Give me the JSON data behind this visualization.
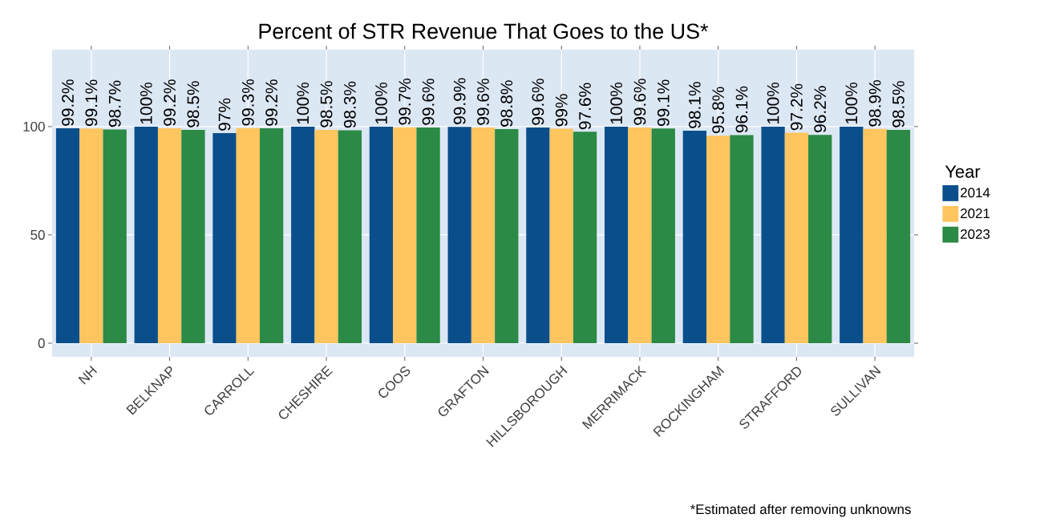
{
  "chart_data": {
    "type": "bar",
    "title": "Percent of STR Revenue That Goes to the US*",
    "categories": [
      "NH",
      "BELKNAP",
      "CARROLL",
      "CHESHIRE",
      "COOS",
      "GRAFTON",
      "HILLSBOROUGH",
      "MERRIMACK",
      "ROCKINGHAM",
      "STRAFFORD",
      "SULLIVAN"
    ],
    "series": [
      {
        "name": "2014",
        "color": "#0a4f8c",
        "values": [
          99.2,
          100,
          97,
          100,
          100,
          99.9,
          99.6,
          100,
          98.1,
          100,
          100
        ],
        "value_labels": [
          "99.2%",
          "100%",
          "97%",
          "100%",
          "100%",
          "99.9%",
          "99.6%",
          "100%",
          "98.1%",
          "100%",
          "100%"
        ]
      },
      {
        "name": "2021",
        "color": "#ffc55e",
        "values": [
          99.1,
          99.2,
          99.3,
          98.5,
          99.7,
          99.6,
          99,
          99.6,
          95.8,
          97.2,
          98.9
        ],
        "value_labels": [
          "99.1%",
          "99.2%",
          "99.3%",
          "98.5%",
          "99.7%",
          "99.6%",
          "99%",
          "99.6%",
          "95.8%",
          "97.2%",
          "98.9%"
        ]
      },
      {
        "name": "2023",
        "color": "#2b8a45",
        "values": [
          98.7,
          98.5,
          99.2,
          98.3,
          99.6,
          98.8,
          97.6,
          99.1,
          96.1,
          96.2,
          98.5
        ],
        "value_labels": [
          "98.7%",
          "98.5%",
          "99.2%",
          "98.3%",
          "99.6%",
          "98.8%",
          "97.6%",
          "99.1%",
          "96.1%",
          "96.2%",
          "98.5%"
        ]
      }
    ],
    "ylim": [
      -6.3,
      135.5
    ],
    "yticks": [
      0,
      50,
      100
    ],
    "grid": true,
    "legend": "right",
    "legend_title": "Year",
    "annotations": [
      "*Estimated after removing unknowns"
    ]
  }
}
